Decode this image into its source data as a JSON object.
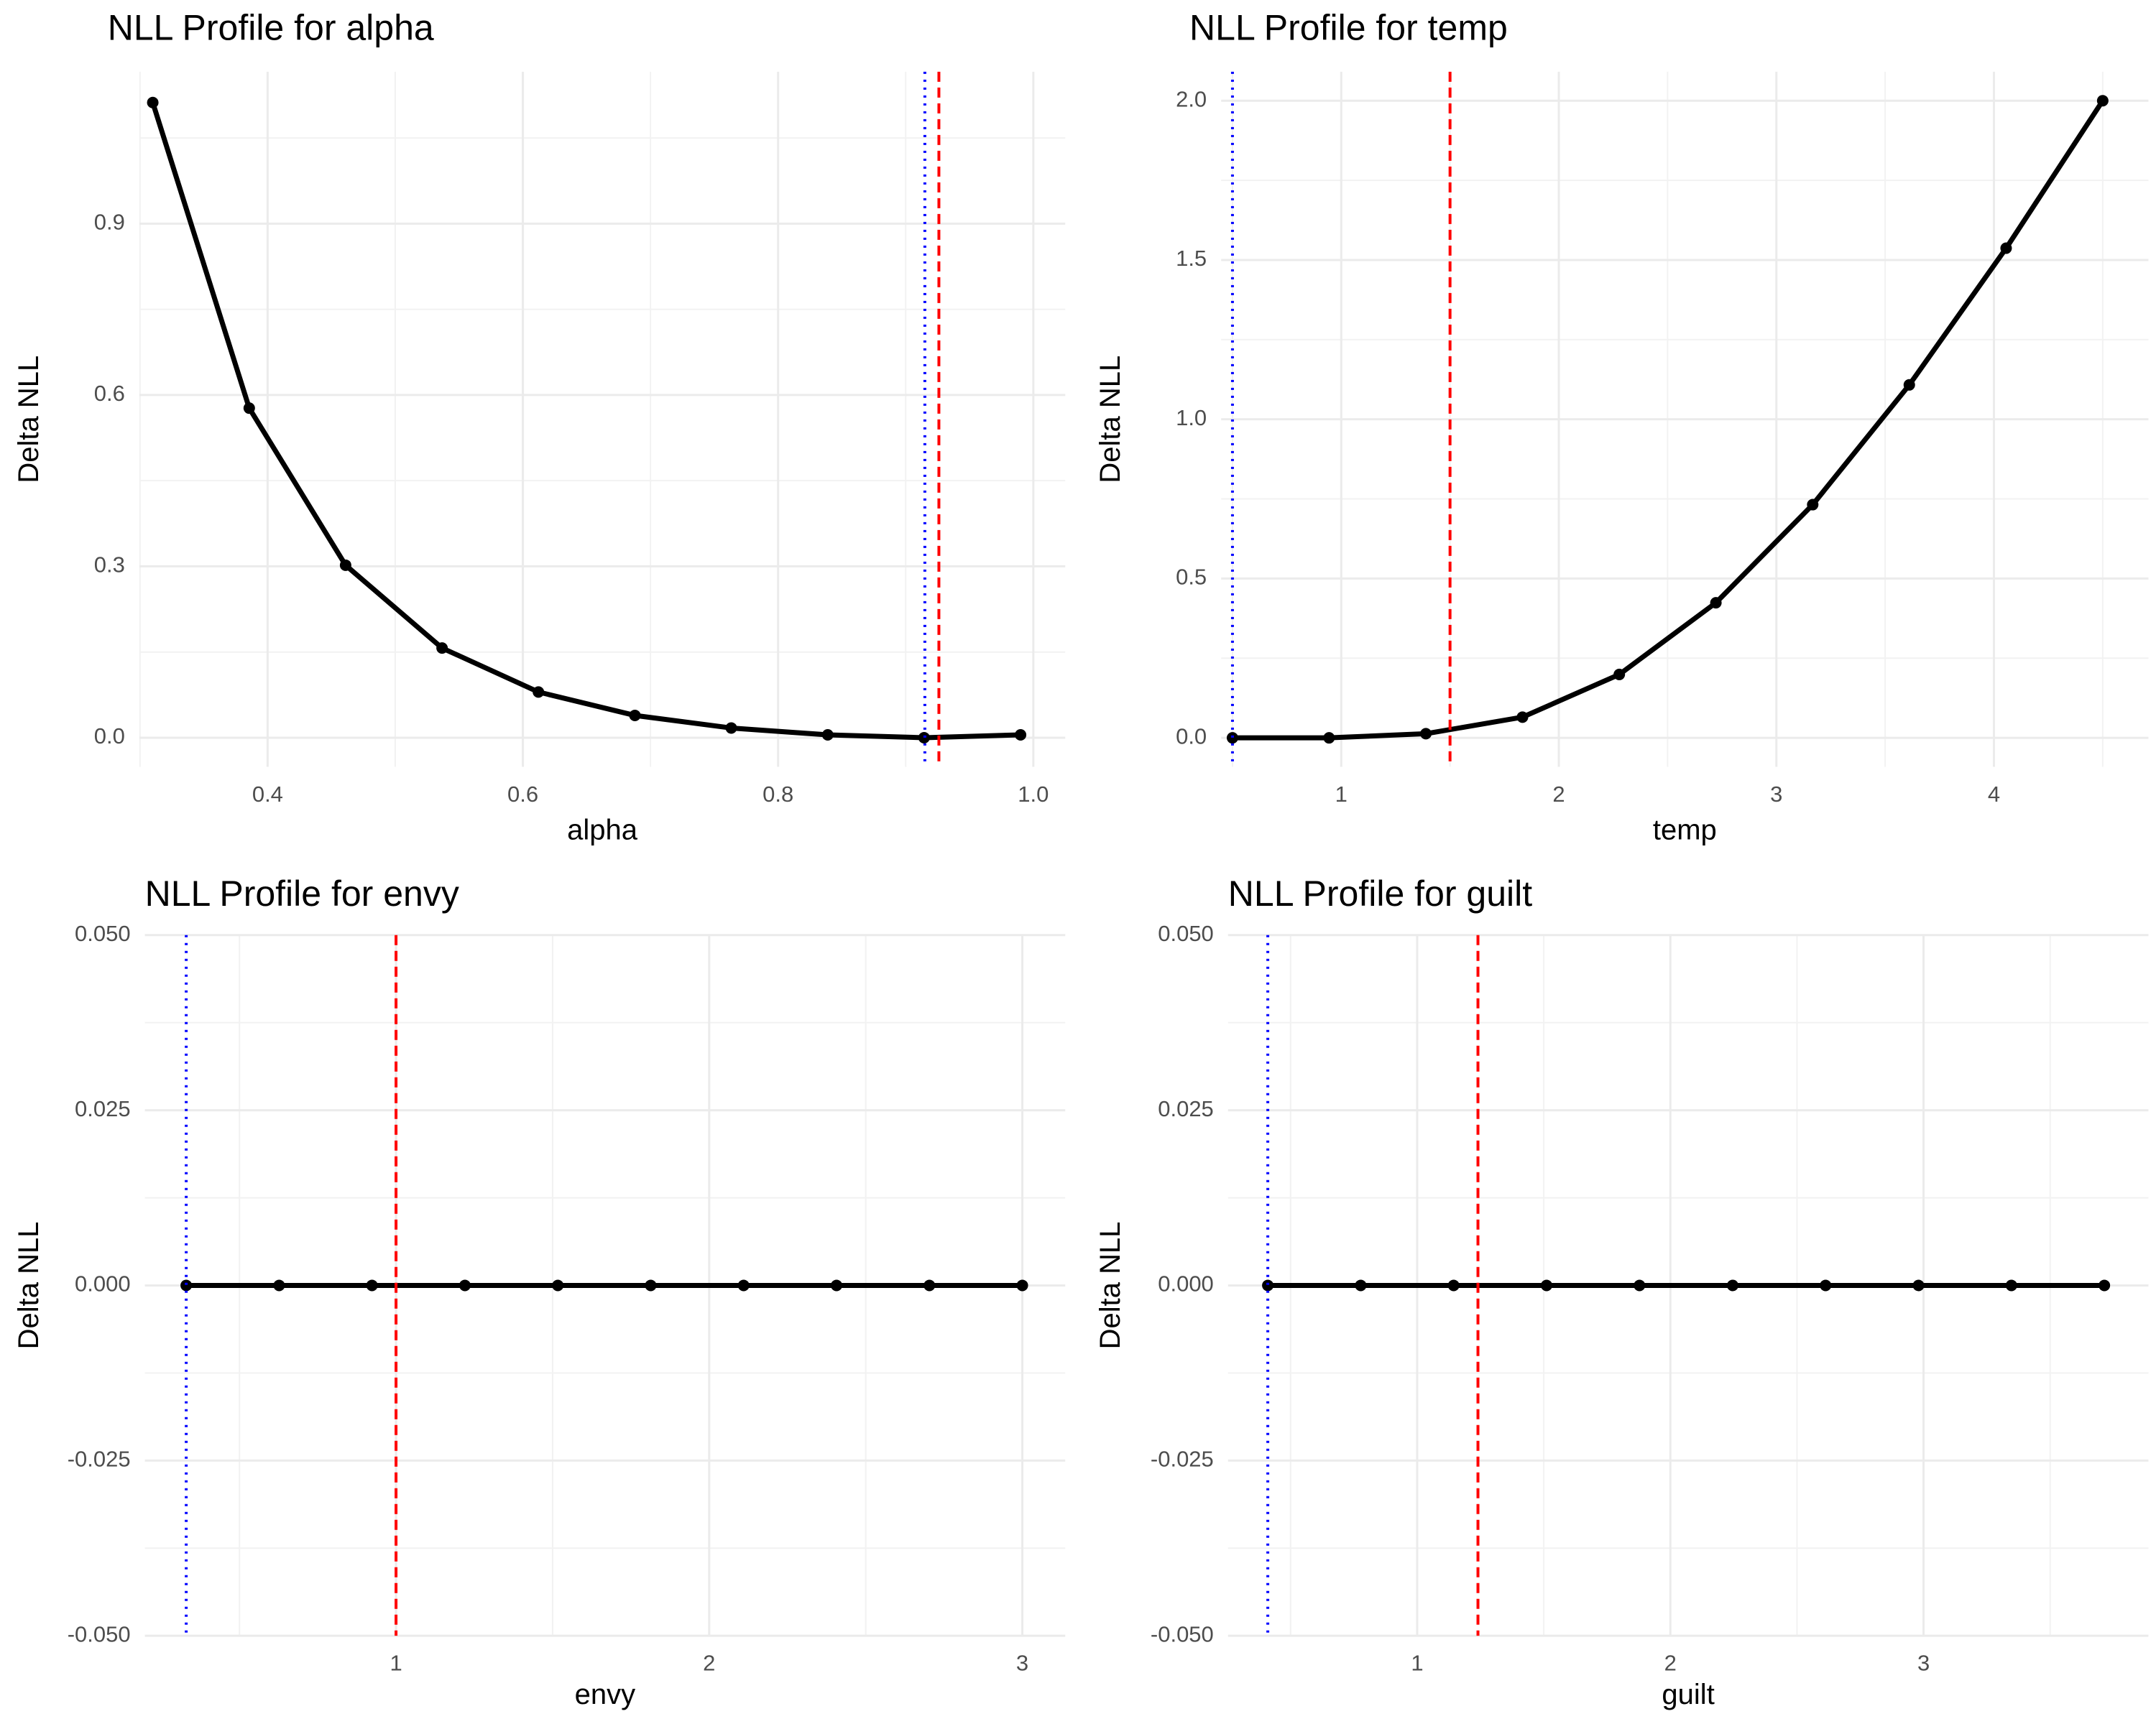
{
  "chart_data": [
    {
      "type": "line",
      "title": "NLL Profile for alpha",
      "x_label": "alpha",
      "y_label": "Delta NLL",
      "x": [
        0.31,
        0.3856,
        0.4611,
        0.5367,
        0.6122,
        0.6878,
        0.7633,
        0.8389,
        0.9144,
        0.99
      ],
      "values": [
        1.112,
        0.577,
        0.302,
        0.157,
        0.08,
        0.039,
        0.017,
        0.005,
        0,
        0.005
      ],
      "color": "#000000",
      "ref_lines": [
        {
          "value": 0.915,
          "color": "#0000ff",
          "dash": "dotted"
        },
        {
          "value": 0.926,
          "color": "#ff0000",
          "dash": "dashed"
        }
      ],
      "xlim": [
        0.2995,
        1.025
      ],
      "ylim": [
        -0.051,
        1.166
      ],
      "xticks": [
        0.4,
        0.6,
        0.8,
        {
          "value": 1.0,
          "label": "1.0"
        }
      ],
      "yticks": [
        {
          "value": 0,
          "label": "0.0"
        },
        0.3,
        0.6,
        0.9
      ],
      "grid": true
    },
    {
      "type": "line",
      "title": "NLL Profile for temp",
      "x_label": "temp",
      "y_label": "Delta NLL",
      "x": [
        0.5,
        0.944,
        1.389,
        1.833,
        2.278,
        2.722,
        3.167,
        3.611,
        4.056,
        4.5
      ],
      "values": [
        0,
        0,
        0.013,
        0.065,
        0.199,
        0.424,
        0.732,
        1.108,
        1.537,
        2.0
      ],
      "color": "#000000",
      "ref_lines": [
        {
          "value": 0.5,
          "color": "#0000ff",
          "dash": "dotted"
        },
        {
          "value": 1.5,
          "color": "#ff0000",
          "dash": "dashed"
        }
      ],
      "xlim": [
        0.448,
        4.71
      ],
      "ylim": [
        -0.091,
        2.091
      ],
      "xticks": [
        1,
        2,
        3,
        4
      ],
      "yticks": [
        {
          "value": 0,
          "label": "0.0"
        },
        0.5,
        {
          "value": 1,
          "label": "1.0"
        },
        1.5,
        {
          "value": 2,
          "label": "2.0"
        }
      ],
      "grid": true
    },
    {
      "type": "line",
      "title": "NLL Profile for envy",
      "x_label": "envy",
      "y_label": "Delta NLL",
      "x": [
        0.33,
        0.6267,
        0.9233,
        1.22,
        1.5167,
        1.8133,
        2.11,
        2.4067,
        2.7033,
        3.0
      ],
      "values": [
        0,
        0,
        0,
        0,
        0,
        0,
        0,
        0,
        0,
        0
      ],
      "color": "#000000",
      "ref_lines": [
        {
          "value": 0.33,
          "color": "#0000ff",
          "dash": "dotted"
        },
        {
          "value": 1.0,
          "color": "#ff0000",
          "dash": "dashed"
        }
      ],
      "xlim": [
        0.198,
        3.137
      ],
      "ylim": [
        -0.05,
        0.05
      ],
      "xticks": [
        1,
        2,
        3
      ],
      "yticks": [
        {
          "value": -0.05,
          "label": "-0.050"
        },
        {
          "value": -0.025,
          "label": "-0.025"
        },
        {
          "value": 0,
          "label": "0.000"
        },
        {
          "value": 0.025,
          "label": "0.025"
        },
        {
          "value": 0.05,
          "label": "0.050"
        }
      ],
      "grid": true
    },
    {
      "type": "line",
      "title": "NLL Profile for guilt",
      "x_label": "guilt",
      "y_label": "Delta NLL",
      "x": [
        0.41,
        0.777,
        1.144,
        1.511,
        1.878,
        2.246,
        2.613,
        2.98,
        3.347,
        3.714
      ],
      "values": [
        0,
        0,
        0,
        0,
        0,
        0,
        0,
        0,
        0,
        0
      ],
      "color": "#000000",
      "ref_lines": [
        {
          "value": 0.41,
          "color": "#0000ff",
          "dash": "dotted"
        },
        {
          "value": 1.24,
          "color": "#ff0000",
          "dash": "dashed"
        }
      ],
      "xlim": [
        0.253,
        3.888
      ],
      "ylim": [
        -0.05,
        0.05
      ],
      "xticks": [
        1,
        2,
        3
      ],
      "yticks": [
        {
          "value": -0.05,
          "label": "-0.050"
        },
        {
          "value": -0.025,
          "label": "-0.025"
        },
        {
          "value": 0,
          "label": "0.000"
        },
        {
          "value": 0.025,
          "label": "0.025"
        },
        {
          "value": 0.05,
          "label": "0.050"
        }
      ],
      "grid": true
    }
  ]
}
